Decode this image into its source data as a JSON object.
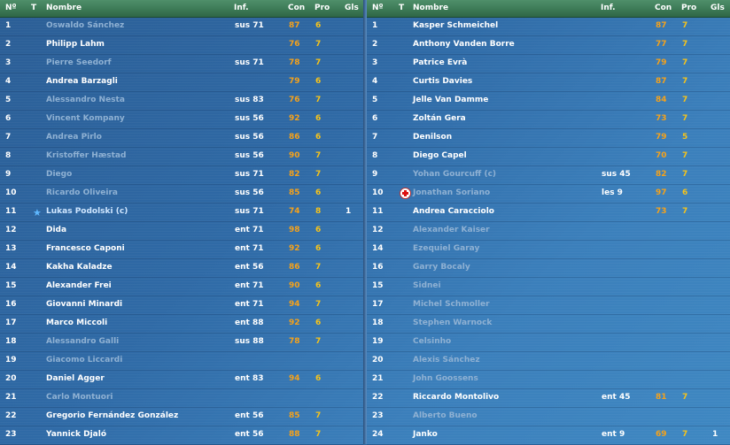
{
  "left": {
    "headers": {
      "num": "Nº",
      "t": "T",
      "name": "Nombre",
      "inf": "Inf.",
      "con": "Con",
      "pro": "Pro",
      "gls": "Gls"
    },
    "rows": [
      {
        "num": "1",
        "name": "Oswaldo Sánchez",
        "inf": "sus 71",
        "con": "87",
        "pro": "6",
        "gls": "",
        "dim": true
      },
      {
        "num": "2",
        "name": "Philipp Lahm",
        "inf": "",
        "con": "76",
        "pro": "7",
        "gls": "",
        "dim": false
      },
      {
        "num": "3",
        "name": "Pierre Seedorf",
        "inf": "sus 71",
        "con": "78",
        "pro": "7",
        "gls": "",
        "dim": true
      },
      {
        "num": "4",
        "name": "Andrea Barzagli",
        "inf": "",
        "con": "79",
        "pro": "6",
        "gls": "",
        "dim": false
      },
      {
        "num": "5",
        "name": "Alessandro Nesta",
        "inf": "sus 83",
        "con": "76",
        "pro": "7",
        "gls": "",
        "dim": true
      },
      {
        "num": "6",
        "name": "Vincent Kompany",
        "inf": "sus 56",
        "con": "92",
        "pro": "6",
        "gls": "",
        "dim": true
      },
      {
        "num": "7",
        "name": "Andrea Pirlo",
        "inf": "sus 56",
        "con": "86",
        "pro": "6",
        "gls": "",
        "dim": true
      },
      {
        "num": "8",
        "name": "Kristoffer Hæstad",
        "inf": "sus 56",
        "con": "90",
        "pro": "7",
        "gls": "",
        "dim": true
      },
      {
        "num": "9",
        "name": "Diego",
        "inf": "sus 71",
        "con": "82",
        "pro": "7",
        "gls": "",
        "dim": true
      },
      {
        "num": "10",
        "name": "Ricardo Oliveira",
        "inf": "sus 56",
        "con": "85",
        "pro": "6",
        "gls": "",
        "dim": true
      },
      {
        "num": "11",
        "name": "Lukas Podolski (c)",
        "inf": "sus 71",
        "con": "74",
        "pro": "8",
        "gls": "1",
        "dim": false,
        "star": true
      },
      {
        "num": "12",
        "name": "Dida",
        "inf": "ent 71",
        "con": "98",
        "pro": "6",
        "gls": "",
        "dim": false
      },
      {
        "num": "13",
        "name": "Francesco Caponi",
        "inf": "ent 71",
        "con": "92",
        "pro": "6",
        "gls": "",
        "dim": false
      },
      {
        "num": "14",
        "name": "Kakha Kaladze",
        "inf": "ent 56",
        "con": "86",
        "pro": "7",
        "gls": "",
        "dim": false
      },
      {
        "num": "15",
        "name": "Alexander Frei",
        "inf": "ent 71",
        "con": "90",
        "pro": "6",
        "gls": "",
        "dim": false
      },
      {
        "num": "16",
        "name": "Giovanni Minardi",
        "inf": "ent 71",
        "con": "94",
        "pro": "7",
        "gls": "",
        "dim": false
      },
      {
        "num": "17",
        "name": "Marco Miccoli",
        "inf": "ent 88",
        "con": "92",
        "pro": "6",
        "gls": "",
        "dim": false
      },
      {
        "num": "18",
        "name": "Alessandro Galli",
        "inf": "sus 88",
        "con": "78",
        "pro": "7",
        "gls": "",
        "dim": true
      },
      {
        "num": "19",
        "name": "Giacomo Liccardi",
        "inf": "",
        "con": "",
        "pro": "",
        "gls": "",
        "dim": true
      },
      {
        "num": "20",
        "name": "Daniel Agger",
        "inf": "ent 83",
        "con": "94",
        "pro": "6",
        "gls": "",
        "dim": false
      },
      {
        "num": "21",
        "name": "Carlo Montuori",
        "inf": "",
        "con": "",
        "pro": "",
        "gls": "",
        "dim": true
      },
      {
        "num": "22",
        "name": "Gregorio Fernández González",
        "inf": "ent 56",
        "con": "85",
        "pro": "7",
        "gls": "",
        "dim": false
      },
      {
        "num": "23",
        "name": "Yannick Djaló",
        "inf": "ent 56",
        "con": "88",
        "pro": "7",
        "gls": "",
        "dim": false
      }
    ]
  },
  "right": {
    "headers": {
      "num": "Nº",
      "t": "T",
      "name": "Nombre",
      "inf": "Inf.",
      "con": "Con",
      "pro": "Pro",
      "gls": "Gls"
    },
    "rows": [
      {
        "num": "1",
        "name": "Kasper Schmeichel",
        "inf": "",
        "con": "87",
        "pro": "7",
        "gls": "",
        "dim": false
      },
      {
        "num": "2",
        "name": "Anthony Vanden Borre",
        "inf": "",
        "con": "77",
        "pro": "7",
        "gls": "",
        "dim": false
      },
      {
        "num": "3",
        "name": "Patrice Evrà",
        "inf": "",
        "con": "79",
        "pro": "7",
        "gls": "",
        "dim": false
      },
      {
        "num": "4",
        "name": "Curtis Davies",
        "inf": "",
        "con": "87",
        "pro": "7",
        "gls": "",
        "dim": false
      },
      {
        "num": "5",
        "name": "Jelle Van Damme",
        "inf": "",
        "con": "84",
        "pro": "7",
        "gls": "",
        "dim": false
      },
      {
        "num": "6",
        "name": "Zoltán Gera",
        "inf": "",
        "con": "73",
        "pro": "7",
        "gls": "",
        "dim": false
      },
      {
        "num": "7",
        "name": "Denilson",
        "inf": "",
        "con": "79",
        "pro": "5",
        "gls": "",
        "dim": false
      },
      {
        "num": "8",
        "name": "Diego Capel",
        "inf": "",
        "con": "70",
        "pro": "7",
        "gls": "",
        "dim": false
      },
      {
        "num": "9",
        "name": "Yohan Gourcuff (c)",
        "inf": "sus 45",
        "con": "82",
        "pro": "7",
        "gls": "",
        "dim": true
      },
      {
        "num": "10",
        "name": "Jonathan Soriano",
        "inf": "les 9",
        "con": "97",
        "pro": "6",
        "gls": "",
        "dim": true,
        "injury": true
      },
      {
        "num": "11",
        "name": "Andrea Caracciolo",
        "inf": "",
        "con": "73",
        "pro": "7",
        "gls": "",
        "dim": false
      },
      {
        "num": "12",
        "name": "Alexander Kaiser",
        "inf": "",
        "con": "",
        "pro": "",
        "gls": "",
        "dim": true
      },
      {
        "num": "14",
        "name": "Ezequiel Garay",
        "inf": "",
        "con": "",
        "pro": "",
        "gls": "",
        "dim": true
      },
      {
        "num": "16",
        "name": "Garry Bocaly",
        "inf": "",
        "con": "",
        "pro": "",
        "gls": "",
        "dim": true
      },
      {
        "num": "15",
        "name": "Sidnei",
        "inf": "",
        "con": "",
        "pro": "",
        "gls": "",
        "dim": true
      },
      {
        "num": "17",
        "name": "Michel Schmoller",
        "inf": "",
        "con": "",
        "pro": "",
        "gls": "",
        "dim": true
      },
      {
        "num": "18",
        "name": "Stephen Warnock",
        "inf": "",
        "con": "",
        "pro": "",
        "gls": "",
        "dim": true
      },
      {
        "num": "19",
        "name": "Celsinho",
        "inf": "",
        "con": "",
        "pro": "",
        "gls": "",
        "dim": true
      },
      {
        "num": "20",
        "name": "Alexis Sánchez",
        "inf": "",
        "con": "",
        "pro": "",
        "gls": "",
        "dim": true
      },
      {
        "num": "21",
        "name": "John Goossens",
        "inf": "",
        "con": "",
        "pro": "",
        "gls": "",
        "dim": true
      },
      {
        "num": "22",
        "name": "Riccardo Montolivo",
        "inf": "ent 45",
        "con": "81",
        "pro": "7",
        "gls": "",
        "dim": false
      },
      {
        "num": "23",
        "name": "Alberto Bueno",
        "inf": "",
        "con": "",
        "pro": "",
        "gls": "",
        "dim": true
      },
      {
        "num": "24",
        "name": "Janko",
        "inf": "ent 9",
        "con": "69",
        "pro": "7",
        "gls": "1",
        "dim": false
      }
    ]
  },
  "colors": {
    "con": "#f6a21a",
    "pro": "#f6c31a",
    "header_green": "#3e7c58",
    "dim_text": "#8fb1d3"
  }
}
